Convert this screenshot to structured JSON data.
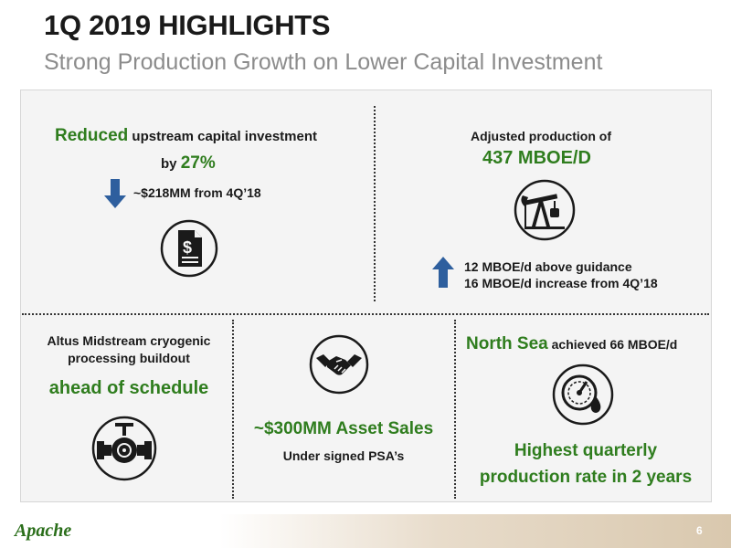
{
  "header": {
    "title": "1Q 2019 HIGHLIGHTS",
    "subtitle": "Strong Production Growth on Lower Capital Investment"
  },
  "capital": {
    "word_reduced": "Reduced",
    "line1_rest": "upstream capital investment",
    "by": "by",
    "pct": "27%",
    "delta": "~$218MM from 4Q’18",
    "icon": "invoice-dollar-icon"
  },
  "production": {
    "label": "Adjusted production of",
    "value": "437 MBOE/D",
    "note1": "12 MBOE/d above guidance",
    "note2": "16 MBOE/d increase from 4Q’18",
    "icon": "pumpjack-icon"
  },
  "altus": {
    "line1": "Altus Midstream cryogenic",
    "line2": "processing buildout",
    "status": "ahead of schedule",
    "icon": "pipeline-valve-icon"
  },
  "sales": {
    "headline": "~$300MM Asset Sales",
    "sub": "Under signed PSA’s",
    "icon": "handshake-icon"
  },
  "northsea": {
    "region": "North Sea",
    "rest": "achieved 66 MBOE/d",
    "highlight_line1": "Highest quarterly",
    "highlight_line2": "production rate in 2 years",
    "icon": "gauge-oil-drop-icon"
  },
  "footer": {
    "logo": "Apache",
    "page_number": "6"
  },
  "colors": {
    "accent_green": "#2f7d1e",
    "arrow_blue": "#2e5f9e",
    "icon_dark": "#1a1a1a"
  }
}
